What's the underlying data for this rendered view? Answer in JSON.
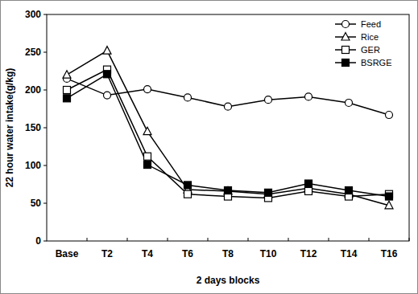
{
  "chart_data": {
    "type": "line",
    "x_label": "2 days blocks",
    "y_label": "22 hour water intake(g/kg)",
    "categories": [
      "Base",
      "T2",
      "T4",
      "T6",
      "T8",
      "T10",
      "T12",
      "T14",
      "T16"
    ],
    "series": [
      {
        "name": "Feed",
        "color": "#000000",
        "marker": "circle",
        "values": [
          215,
          193,
          201,
          190,
          178,
          187,
          191,
          183,
          167
        ]
      },
      {
        "name": "Rice",
        "color": "#000000",
        "marker": "triangle",
        "values": [
          220,
          252,
          145,
          68,
          66,
          62,
          70,
          62,
          47
        ]
      },
      {
        "name": "GER",
        "color": "#000000",
        "marker": "square",
        "values": [
          200,
          227,
          112,
          62,
          59,
          57,
          66,
          59,
          62
        ]
      },
      {
        "name": "BSRGE",
        "color": "#000000",
        "marker": "filled-square",
        "values": [
          189,
          221,
          101,
          74,
          67,
          64,
          76,
          67,
          59
        ]
      }
    ],
    "ylim": [
      0,
      300
    ],
    "yticks": [
      0,
      50,
      100,
      150,
      200,
      250,
      300
    ],
    "grid": false,
    "legend": "top-right"
  }
}
